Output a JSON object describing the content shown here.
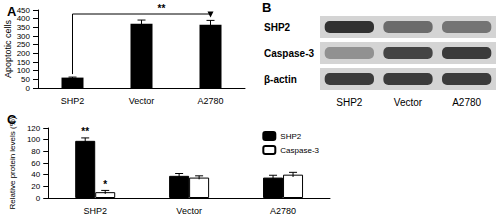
{
  "chart_data": [
    {
      "type": "bar",
      "title": "A",
      "categories": [
        "SHP2",
        "Vector",
        "A2780"
      ],
      "values": [
        60,
        370,
        365
      ],
      "errors": [
        3,
        22,
        25
      ],
      "color": "#000000",
      "y_label": "Apoptotic cells",
      "ylim": [
        0,
        450
      ],
      "yticks": [
        0,
        50,
        100,
        150,
        200,
        250,
        300,
        350,
        400,
        450
      ],
      "grid": false,
      "annotations": [
        {
          "text": "**",
          "from": "SHP2",
          "to": "A2780"
        }
      ]
    },
    {
      "type": "bar",
      "title": "C",
      "categories": [
        "SHP2",
        "Vector",
        "A2780"
      ],
      "series": [
        {
          "name": "SHP2",
          "color": "#000000",
          "values": [
            98,
            38,
            35
          ],
          "errors": [
            5,
            4,
            4
          ]
        },
        {
          "name": "Caspase-3",
          "color": "#ffffff",
          "values": [
            10,
            35,
            40
          ],
          "errors": [
            3,
            3,
            4
          ]
        }
      ],
      "y_label": "Relative protein levels (%)",
      "ylim": [
        0,
        120
      ],
      "yticks": [
        0,
        20,
        40,
        60,
        80,
        100,
        120
      ],
      "grid": false,
      "legend": "upper right",
      "annotations": [
        {
          "text": "**",
          "category": "SHP2",
          "series": "SHP2"
        },
        {
          "text": "*",
          "category": "SHP2",
          "series": "Caspase-3"
        }
      ]
    }
  ],
  "blot": {
    "title": "B",
    "rows": [
      "SHP2",
      "Caspase-3",
      "β-actin"
    ],
    "columns": [
      "SHP2",
      "Vector",
      "A2780"
    ]
  }
}
